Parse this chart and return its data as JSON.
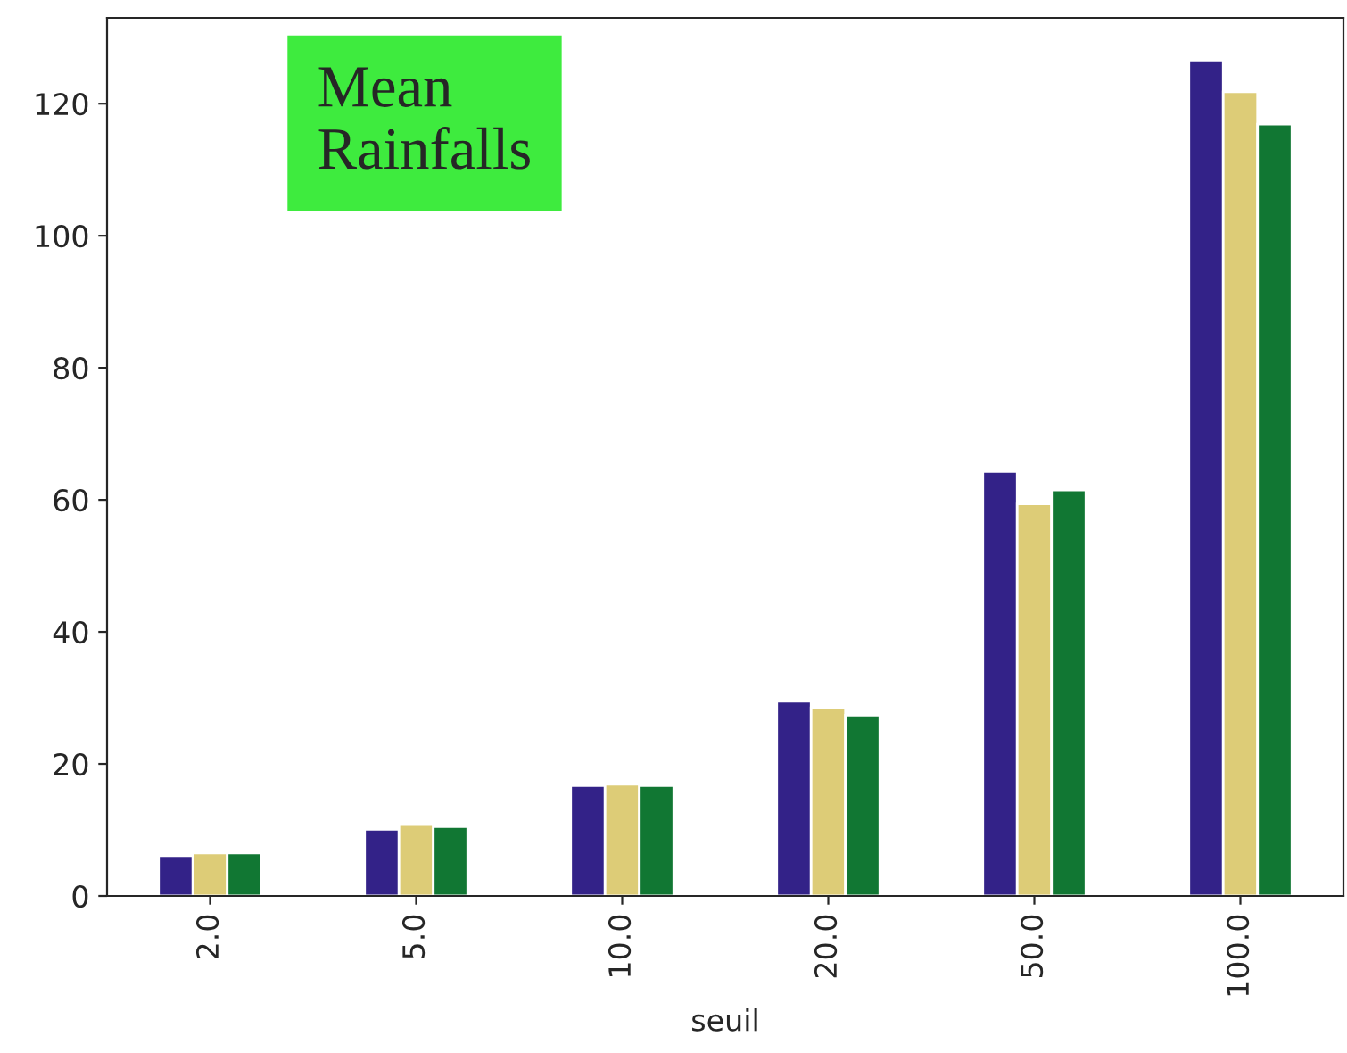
{
  "chart_data": {
    "type": "bar",
    "title": "Mean\nRainfalls",
    "xlabel": "seuil",
    "categories": [
      "2.0",
      "5.0",
      "10.0",
      "20.0",
      "50.0",
      "100.0"
    ],
    "series": [
      {
        "color": "#332288",
        "values": [
          6.1,
          10.1,
          16.7,
          29.5,
          64.3,
          126.6
        ]
      },
      {
        "color": "#ddcc77",
        "values": [
          6.5,
          10.8,
          16.9,
          28.5,
          59.4,
          121.8
        ]
      },
      {
        "color": "#117733",
        "values": [
          6.5,
          10.5,
          16.7,
          27.4,
          61.5,
          116.9
        ]
      }
    ],
    "ylim": [
      0,
      133
    ],
    "yticks": [
      0,
      20,
      40,
      60,
      80,
      100,
      120
    ],
    "grid": false,
    "legend": false
  }
}
